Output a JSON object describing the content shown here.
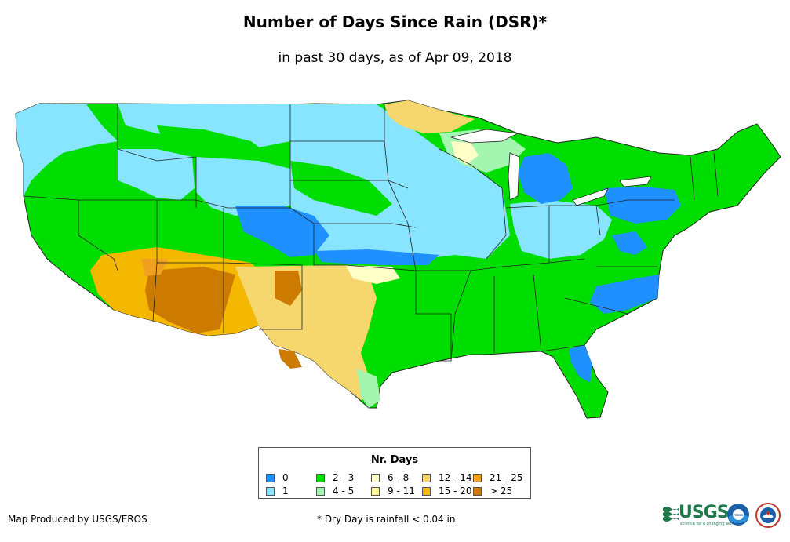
{
  "title": "Number of Days Since Rain (DSR)*",
  "subtitle": "in past 30 days, as of Apr 09, 2018",
  "legend": {
    "title": "Nr. Days",
    "items": [
      {
        "label": "0",
        "color": "#1e90ff"
      },
      {
        "label": "1",
        "color": "#87e5ff"
      },
      {
        "label": "2 - 3",
        "color": "#00dd00"
      },
      {
        "label": "4 - 5",
        "color": "#a3f5b0"
      },
      {
        "label": "6 - 8",
        "color": "#ffffc8"
      },
      {
        "label": "9 - 11",
        "color": "#fff59a"
      },
      {
        "label": "12 - 14",
        "color": "#f5d76e"
      },
      {
        "label": "15 - 20",
        "color": "#f5b800"
      },
      {
        "label": "21 - 25",
        "color": "#f0a020"
      },
      {
        "label": "> 25",
        "color": "#cc7a00"
      }
    ]
  },
  "credit": "Map Produced by USGS/EROS",
  "footnote": "* Dry Day is rainfall < 0.04 in.",
  "logos": {
    "usgs_text": "USGS",
    "usgs_tagline": "science for a changing world",
    "noaa_text": "noaa"
  }
}
